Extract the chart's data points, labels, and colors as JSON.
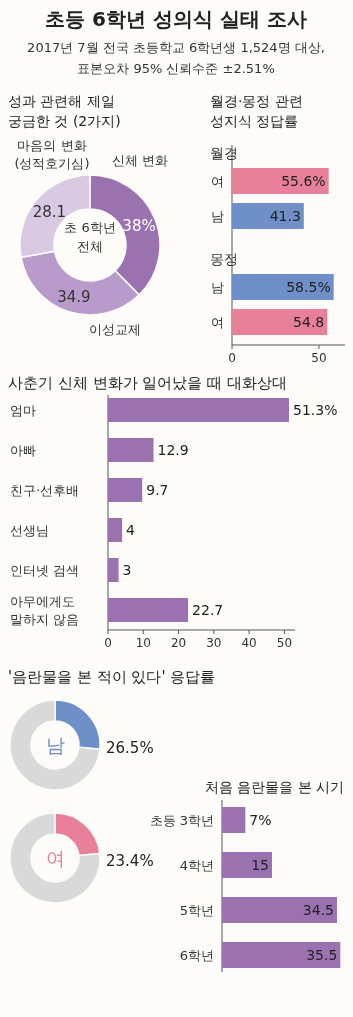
{
  "chart_data": [
    {
      "type": "other",
      "title": "초등 6학년 성의식 실태 조사",
      "subtitle": "2017년 7월 전국 초등학교 6학년생 1,524명 대상, 표본오차 95% 신뢰수준 ±2.51%"
    },
    {
      "type": "donut",
      "title": "성과 관련해 제일 궁금한 것 (2가지)",
      "categories": [
        "신체 변화",
        "이성교제",
        "마음의 변화 (성적호기심)"
      ],
      "values": [
        38,
        34.9,
        28.1
      ],
      "colors": [
        "#9b72b0",
        "#b99bcb",
        "#d9c9e3"
      ],
      "value_labels": [
        "38%",
        "34.9",
        "28.1"
      ],
      "annotations": [
        "초 6학년 전체"
      ]
    },
    {
      "type": "bar",
      "orientation": "horizontal",
      "title": "월경·몽정 관련 성지식 정답률",
      "categories": [
        "여",
        "남",
        "남",
        "여"
      ],
      "values": [
        55.6,
        41.3,
        58.5,
        54.8
      ],
      "colors": [
        "#e8809a",
        "#6f8fc8",
        "#6f8fc8",
        "#e8809a"
      ],
      "value_labels": [
        "55.6%",
        "41.3",
        "58.5%",
        "54.8"
      ],
      "xlim": [
        0,
        65
      ],
      "xticks": [
        0,
        50
      ],
      "annotations": [
        "월경",
        "몽정"
      ]
    },
    {
      "type": "bar",
      "orientation": "horizontal",
      "title": "사춘기 신체 변화가 일어났을 때 대화상대",
      "categories": [
        "엄마",
        "아빠",
        "친구·선후배",
        "선생님",
        "인터넷 검색",
        "아무에게도 말하지 않음"
      ],
      "values": [
        51.3,
        12.9,
        9.7,
        4,
        3,
        22.7
      ],
      "colors": [
        "#9b72b0",
        "#9b72b0",
        "#9b72b0",
        "#9b72b0",
        "#9b72b0",
        "#9b72b0"
      ],
      "value_labels": [
        "51.3%",
        "12.9",
        "9.7",
        "4",
        "3",
        "22.7"
      ],
      "xlim": [
        0,
        53
      ],
      "xticks": [
        0,
        10,
        20,
        30,
        40,
        50
      ]
    },
    {
      "type": "donut",
      "title": "'음란물을 본 적이 있다' 응답률",
      "categories": [
        "남",
        null
      ],
      "values": [
        26.5,
        73.5
      ],
      "colors": [
        "#6f8fc8",
        "#d9d9d9"
      ],
      "value_labels": [
        "26.5%",
        null
      ]
    },
    {
      "type": "donut",
      "categories": [
        "여",
        null
      ],
      "values": [
        23.4,
        76.6
      ],
      "colors": [
        "#e8809a",
        "#d9d9d9"
      ],
      "value_labels": [
        "23.4%",
        null
      ]
    },
    {
      "type": "bar",
      "orientation": "horizontal",
      "title": "처음 음란물을 본 시기",
      "categories": [
        "초등 3학년",
        "4학년",
        "5학년",
        "6학년"
      ],
      "values": [
        7,
        15,
        34.5,
        35.5
      ],
      "colors": [
        "#9b72b0",
        "#9b72b0",
        "#9b72b0",
        "#9b72b0"
      ],
      "value_labels": [
        "7%",
        "15",
        "34.5",
        "35.5"
      ],
      "xlim": [
        0,
        36
      ],
      "tick_labels": "y"
    }
  ]
}
